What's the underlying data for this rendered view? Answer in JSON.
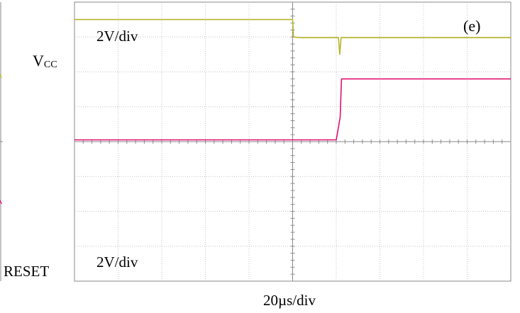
{
  "panel_label": "(e)",
  "chart_data": {
    "type": "line",
    "grid": true,
    "time_scale": "20µs/div",
    "divisions": {
      "x": 10,
      "y": 8
    },
    "series": [
      {
        "name": "VCC",
        "label_main": "V",
        "label_sub": "CC",
        "scale": "2V/div",
        "color": "#b5b62a",
        "x_div": [
          0,
          5.0,
          5.02,
          5.2,
          6.05,
          6.08,
          6.11,
          6.2,
          10
        ],
        "y_div": [
          0.5,
          0.5,
          1.0,
          1.02,
          1.02,
          1.5,
          1.02,
          1.02,
          1.02
        ]
      },
      {
        "name": "RESET",
        "label": "RESET",
        "scale": "2V/div",
        "color": "#e0106e",
        "x_div": [
          0,
          6.0,
          6.09,
          6.12,
          10
        ],
        "y_div": [
          3.95,
          3.95,
          3.3,
          2.2,
          2.2
        ]
      }
    ]
  }
}
